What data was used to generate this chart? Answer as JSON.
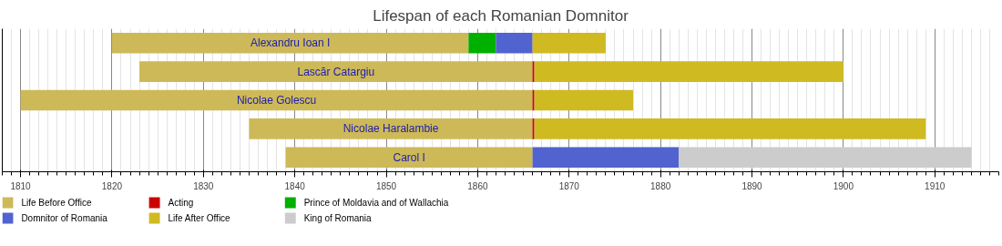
{
  "chart_data": {
    "type": "bar",
    "orientation": "horizontal",
    "title": "Lifespan of each Romanian Domnitor",
    "categories": [
      "Alexandru Ioan I",
      "Lascăr Catargiu",
      "Nicolae Golescu",
      "Nicolae Haralambie",
      "Carol I"
    ],
    "series": [
      {
        "name": "Life Before Office",
        "color": "#cdb958",
        "base": [
          1820,
          1823,
          1810,
          1835,
          1839
        ],
        "values": [
          39,
          43,
          56,
          31,
          27
        ]
      },
      {
        "name": "Acting",
        "color": "#cc0000",
        "base": [
          null,
          1866,
          1866,
          1866,
          null
        ],
        "values": [
          null,
          0.2,
          0.2,
          0.2,
          null
        ]
      },
      {
        "name": "Prince of Moldavia and of Wallachia",
        "color": "#00b000",
        "base": [
          1859,
          null,
          null,
          null,
          null
        ],
        "values": [
          3,
          null,
          null,
          null,
          null
        ]
      },
      {
        "name": "Domnitor of Romania",
        "color": "#5163cf",
        "base": [
          1862,
          null,
          null,
          null,
          1866
        ],
        "values": [
          4,
          null,
          null,
          null,
          16
        ]
      },
      {
        "name": "Life After Office",
        "color": "#cfba22",
        "base": [
          1866,
          1866.2,
          1866.2,
          1866.2,
          null
        ],
        "values": [
          8,
          33.8,
          10.8,
          42.8,
          null
        ]
      },
      {
        "name": "King of Romania",
        "color": "#cccccc",
        "base": [
          null,
          null,
          null,
          null,
          1882
        ],
        "values": [
          null,
          null,
          null,
          null,
          32
        ]
      }
    ],
    "xlim": [
      1808,
      1917
    ],
    "xticks": [
      1810,
      1820,
      1830,
      1840,
      1850,
      1860,
      1870,
      1880,
      1890,
      1900,
      1910
    ],
    "grid": "x",
    "legend": "bottom",
    "tick_labels": "x"
  }
}
